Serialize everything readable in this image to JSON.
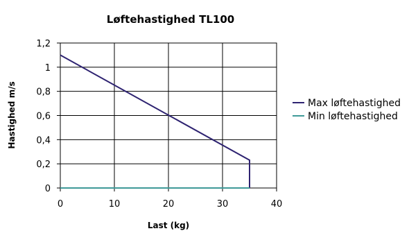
{
  "chart_data": {
    "type": "line",
    "title": "Løftehastighed TL100",
    "xlabel": "Last (kg)",
    "ylabel": "Hastighed m/s",
    "xlim": [
      0,
      40
    ],
    "ylim": [
      0,
      1.2
    ],
    "x_ticks": [
      "0",
      "10",
      "20",
      "30",
      "40"
    ],
    "y_ticks": [
      "0",
      "0,2",
      "0,4",
      "0,6",
      "0,8",
      "1",
      "1,2"
    ],
    "grid": true,
    "legend_position": "right",
    "series": [
      {
        "name": "Max løftehastighed",
        "color": "#2e2371",
        "points": [
          [
            0,
            1.1
          ],
          [
            35,
            0.23
          ],
          [
            35,
            0
          ]
        ]
      },
      {
        "name": "Min løftehastighed",
        "color": "#3f9a98",
        "points": [
          [
            0,
            0
          ],
          [
            35,
            0
          ]
        ]
      }
    ]
  }
}
